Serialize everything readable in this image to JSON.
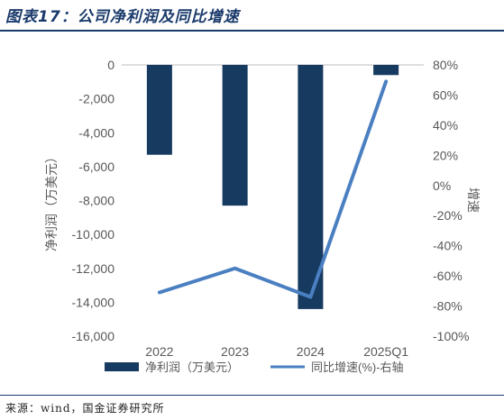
{
  "title": "图表17：公司净利润及同比增速",
  "source": "来源：wind，国金证券研究所",
  "colors": {
    "bar": "#163a60",
    "line": "#4a7fc1",
    "axis_text": "#595959",
    "title": "#1a3a6b"
  },
  "chart_data": {
    "type": "bar",
    "categories": [
      "2022",
      "2023",
      "2024",
      "2025Q1"
    ],
    "series": [
      {
        "name": "净利润（万美元）",
        "type": "bar",
        "axis": "left",
        "values": [
          -5300,
          -8300,
          -14400,
          -600
        ]
      },
      {
        "name": "同比增速(%)-右轴",
        "type": "line",
        "axis": "right",
        "values": [
          -71,
          -55,
          -74,
          69
        ]
      }
    ],
    "ylabel": "净利润（万美元）",
    "y2label": "增速",
    "ylim": [
      -16000,
      0
    ],
    "y2lim": [
      -100,
      80
    ],
    "yticks": [
      0,
      -2000,
      -4000,
      -6000,
      -8000,
      -10000,
      -12000,
      -14000,
      -16000
    ],
    "yticklabels": [
      "0",
      "-2,000",
      "-4,000",
      "-6,000",
      "-8,000",
      "-10,000",
      "-12,000",
      "-14,000",
      "-16,000"
    ],
    "y2ticks": [
      80,
      60,
      40,
      20,
      0,
      -20,
      -40,
      -60,
      -80,
      -100
    ],
    "y2ticklabels": [
      "80%",
      "60%",
      "40%",
      "20%",
      "0%",
      "-20%",
      "-40%",
      "-60%",
      "-80%",
      "-100%"
    ],
    "grid": false,
    "legend_position": "bottom"
  }
}
